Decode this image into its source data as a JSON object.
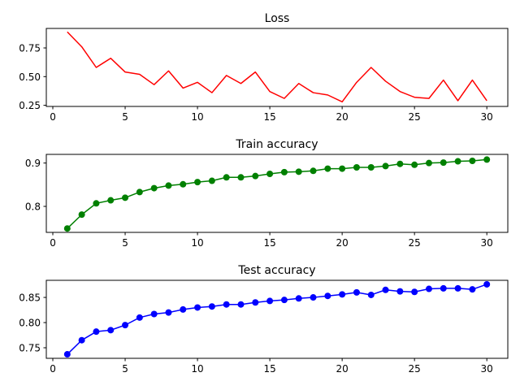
{
  "chart_data": [
    {
      "type": "line",
      "title": "Loss",
      "xlabel": "",
      "ylabel": "",
      "xlim": [
        -0.45,
        31.45
      ],
      "ylim": [
        0.24,
        0.92
      ],
      "xticks": [
        0,
        5,
        10,
        15,
        20,
        25,
        30
      ],
      "yticks": [
        0.25,
        0.5,
        0.75
      ],
      "ytick_labels": [
        "0.25",
        "0.50",
        "0.75"
      ],
      "grid": false,
      "markers": false,
      "color": "#ff0000",
      "x": [
        1,
        2,
        3,
        4,
        5,
        6,
        7,
        8,
        9,
        10,
        11,
        12,
        13,
        14,
        15,
        16,
        17,
        18,
        19,
        20,
        21,
        22,
        23,
        24,
        25,
        26,
        27,
        28,
        29,
        30
      ],
      "y": [
        0.89,
        0.76,
        0.58,
        0.66,
        0.54,
        0.52,
        0.43,
        0.55,
        0.4,
        0.45,
        0.36,
        0.51,
        0.44,
        0.54,
        0.37,
        0.31,
        0.44,
        0.36,
        0.34,
        0.28,
        0.45,
        0.58,
        0.46,
        0.37,
        0.32,
        0.31,
        0.47,
        0.29,
        0.47,
        0.29
      ]
    },
    {
      "type": "line",
      "title": "Train accuracy",
      "xlabel": "",
      "ylabel": "",
      "xlim": [
        -0.45,
        31.45
      ],
      "ylim": [
        0.74,
        0.92
      ],
      "xticks": [
        0,
        5,
        10,
        15,
        20,
        25,
        30
      ],
      "yticks": [
        0.8,
        0.9
      ],
      "ytick_labels": [
        "0.8",
        "0.9"
      ],
      "grid": false,
      "markers": true,
      "color": "#008000",
      "x": [
        1,
        2,
        3,
        4,
        5,
        6,
        7,
        8,
        9,
        10,
        11,
        12,
        13,
        14,
        15,
        16,
        17,
        18,
        19,
        20,
        21,
        22,
        23,
        24,
        25,
        26,
        27,
        28,
        29,
        30
      ],
      "y": [
        0.749,
        0.781,
        0.807,
        0.814,
        0.82,
        0.833,
        0.842,
        0.848,
        0.851,
        0.856,
        0.859,
        0.867,
        0.867,
        0.87,
        0.875,
        0.879,
        0.88,
        0.882,
        0.887,
        0.887,
        0.89,
        0.89,
        0.893,
        0.898,
        0.896,
        0.9,
        0.901,
        0.904,
        0.905,
        0.908
      ]
    },
    {
      "type": "line",
      "title": "Test accuracy",
      "xlabel": "",
      "ylabel": "",
      "xlim": [
        -0.45,
        31.45
      ],
      "ylim": [
        0.729,
        0.884
      ],
      "xticks": [
        0,
        5,
        10,
        15,
        20,
        25,
        30
      ],
      "yticks": [
        0.75,
        0.8,
        0.85
      ],
      "ytick_labels": [
        "0.75",
        "0.80",
        "0.85"
      ],
      "grid": false,
      "markers": true,
      "color": "#0000ff",
      "x": [
        1,
        2,
        3,
        4,
        5,
        6,
        7,
        8,
        9,
        10,
        11,
        12,
        13,
        14,
        15,
        16,
        17,
        18,
        19,
        20,
        21,
        22,
        23,
        24,
        25,
        26,
        27,
        28,
        29,
        30
      ],
      "y": [
        0.737,
        0.765,
        0.782,
        0.785,
        0.795,
        0.81,
        0.817,
        0.82,
        0.826,
        0.83,
        0.832,
        0.836,
        0.836,
        0.84,
        0.843,
        0.845,
        0.848,
        0.85,
        0.853,
        0.856,
        0.86,
        0.855,
        0.865,
        0.862,
        0.861,
        0.867,
        0.868,
        0.868,
        0.866,
        0.876
      ]
    }
  ]
}
